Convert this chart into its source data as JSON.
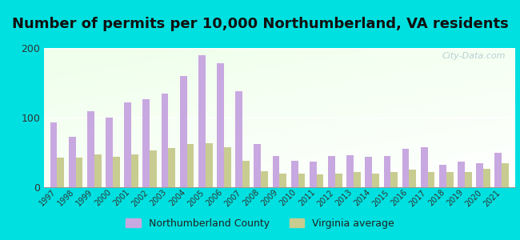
{
  "title": "Number of permits per 10,000 Northumberland, VA residents",
  "years": [
    1997,
    1998,
    1999,
    2000,
    2001,
    2002,
    2003,
    2004,
    2005,
    2006,
    2007,
    2008,
    2009,
    2010,
    2011,
    2012,
    2013,
    2014,
    2015,
    2016,
    2017,
    2018,
    2019,
    2020,
    2021
  ],
  "northumberland": [
    93,
    72,
    109,
    100,
    122,
    127,
    135,
    160,
    190,
    178,
    138,
    62,
    45,
    38,
    37,
    45,
    46,
    44,
    45,
    55,
    58,
    32,
    37,
    35,
    50
  ],
  "virginia_avg": [
    42,
    43,
    47,
    44,
    47,
    53,
    56,
    62,
    63,
    57,
    38,
    23,
    20,
    19,
    18,
    19,
    22,
    19,
    22,
    25,
    22,
    22,
    22,
    27,
    35
  ],
  "northumberland_color": "#c8a8e0",
  "virginia_color": "#c8cc90",
  "background_outer": "#00e0e0",
  "ylim": [
    0,
    200
  ],
  "yticks": [
    0,
    100,
    200
  ],
  "watermark": "City-Data.com",
  "legend_nc": "Northumberland County",
  "legend_va": "Virginia average",
  "title_fontsize": 13,
  "bar_width": 0.38
}
